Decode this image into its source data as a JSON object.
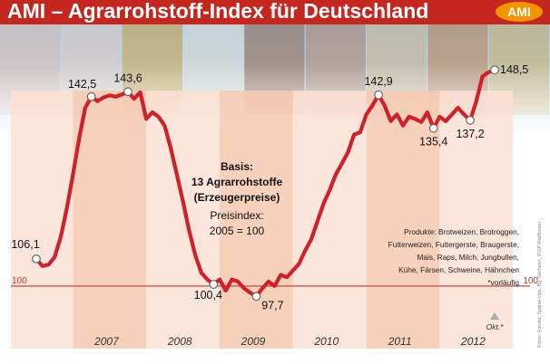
{
  "colors": {
    "title_bar": "#c4271f",
    "logo": "#f29400",
    "line": "#d0202a",
    "reference_line": "#c0392b",
    "band_light": "#fbe1d3",
    "band_dark": "#f7c9b2",
    "marker_fill": "#ffffff"
  },
  "logo_text": "AMI",
  "credit_text": "Fotos: Fotolia, Spatial-Ups, Bg Sachsen, IFOP Raiffeisen",
  "photo_strip_icons": [
    "pig-photo",
    "pig-photo",
    "corn-photo",
    "milk-photo",
    "cow-photo",
    "cow-photo",
    "grain-photo",
    "chicken-photo",
    "wheat-photo"
  ],
  "chart_data": {
    "type": "line",
    "title": "AMI – Agrarrohstoff-Index für Deutschland",
    "xlabel": "",
    "ylabel": "",
    "years": [
      "2007",
      "2008",
      "2009",
      "2010",
      "2011",
      "2012"
    ],
    "x_range": [
      "2006-07",
      "2012-10"
    ],
    "ylim": [
      88,
      152
    ],
    "reference_value": 100,
    "reference_label": "100",
    "last_point_label": "Okt.*",
    "series": [
      {
        "name": "",
        "points": [
          [
            "2006-07",
            106.1
          ],
          [
            "2006-08",
            104.5
          ],
          [
            "2006-09",
            104.8
          ],
          [
            "2006-10",
            106.5
          ],
          [
            "2006-11",
            111.0
          ],
          [
            "2006-12",
            117.5
          ],
          [
            "2007-01",
            125.0
          ],
          [
            "2007-02",
            133.0
          ],
          [
            "2007-03",
            140.0
          ],
          [
            "2007-04",
            142.5
          ],
          [
            "2007-05",
            141.5
          ],
          [
            "2007-06",
            142.3
          ],
          [
            "2007-07",
            142.8
          ],
          [
            "2007-08",
            142.5
          ],
          [
            "2007-09",
            143.0
          ],
          [
            "2007-10",
            143.6
          ],
          [
            "2007-11",
            142.0
          ],
          [
            "2007-12",
            143.5
          ],
          [
            "2008-01",
            137.5
          ],
          [
            "2008-02",
            139.0
          ],
          [
            "2008-03",
            138.0
          ],
          [
            "2008-04",
            136.0
          ],
          [
            "2008-05",
            131.0
          ],
          [
            "2008-06",
            125.0
          ],
          [
            "2008-07",
            119.0
          ],
          [
            "2008-08",
            112.5
          ],
          [
            "2008-09",
            107.0
          ],
          [
            "2008-10",
            103.0
          ],
          [
            "2008-11",
            101.5
          ],
          [
            "2008-12",
            100.4
          ],
          [
            "2009-01",
            101.5
          ],
          [
            "2009-02",
            99.0
          ],
          [
            "2009-03",
            101.5
          ],
          [
            "2009-04",
            101.0
          ],
          [
            "2009-05",
            99.5
          ],
          [
            "2009-06",
            98.5
          ],
          [
            "2009-07",
            97.7
          ],
          [
            "2009-08",
            99.5
          ],
          [
            "2009-09",
            101.0
          ],
          [
            "2009-10",
            100.0
          ],
          [
            "2009-11",
            102.5
          ],
          [
            "2009-12",
            102.0
          ],
          [
            "2010-01",
            103.5
          ],
          [
            "2010-02",
            105.0
          ],
          [
            "2010-03",
            108.0
          ],
          [
            "2010-04",
            110.5
          ],
          [
            "2010-05",
            114.5
          ],
          [
            "2010-06",
            118.5
          ],
          [
            "2010-07",
            121.5
          ],
          [
            "2010-08",
            125.0
          ],
          [
            "2010-09",
            127.5
          ],
          [
            "2010-10",
            130.0
          ],
          [
            "2010-11",
            134.0
          ],
          [
            "2010-12",
            134.5
          ],
          [
            "2011-01",
            138.5
          ],
          [
            "2011-02",
            140.5
          ],
          [
            "2011-03",
            142.9
          ],
          [
            "2011-04",
            140.5
          ],
          [
            "2011-05",
            137.0
          ],
          [
            "2011-06",
            138.5
          ],
          [
            "2011-07",
            136.0
          ],
          [
            "2011-08",
            138.0
          ],
          [
            "2011-09",
            137.5
          ],
          [
            "2011-10",
            136.8
          ],
          [
            "2011-11",
            139.0
          ],
          [
            "2011-12",
            135.4
          ],
          [
            "2012-01",
            138.0
          ],
          [
            "2012-02",
            137.0
          ],
          [
            "2012-03",
            138.5
          ],
          [
            "2012-04",
            140.0
          ],
          [
            "2012-05",
            138.5
          ],
          [
            "2012-06",
            137.2
          ],
          [
            "2012-07",
            141.5
          ],
          [
            "2012-08",
            147.0
          ],
          [
            "2012-09",
            148.0
          ],
          [
            "2012-10",
            148.5
          ]
        ]
      }
    ],
    "data_labels": [
      {
        "at": "2006-07",
        "value": 106.1,
        "label": "106,1"
      },
      {
        "at": "2007-04",
        "value": 142.5,
        "label": "142,5"
      },
      {
        "at": "2007-10",
        "value": 143.6,
        "label": "143,6"
      },
      {
        "at": "2008-12",
        "value": 100.4,
        "label": "100,4"
      },
      {
        "at": "2009-07",
        "value": 97.7,
        "label": "97,7"
      },
      {
        "at": "2011-03",
        "value": 142.9,
        "label": "142,9"
      },
      {
        "at": "2011-12",
        "value": 135.4,
        "label": "135,4"
      },
      {
        "at": "2012-06",
        "value": 137.2,
        "label": "137,2"
      },
      {
        "at": "2012-10",
        "value": 148.5,
        "label": "148,5"
      }
    ],
    "annotations": {
      "basis": [
        "Basis:",
        "13 Agrarrohstoffe",
        "(Erzeugerpreise)",
        "Preisindex:",
        "2005 = 100"
      ],
      "products": [
        "Produkte: Brotweizen, Brotroggen,",
        "Futterweizen, Futtergerste, Braugerste,",
        "Mais, Raps, Milch, Jungbullen,",
        "Kühe, Färsen, Schweine, Hähnchen",
        "*vorläufig"
      ]
    },
    "grid": false,
    "legend": "none"
  }
}
